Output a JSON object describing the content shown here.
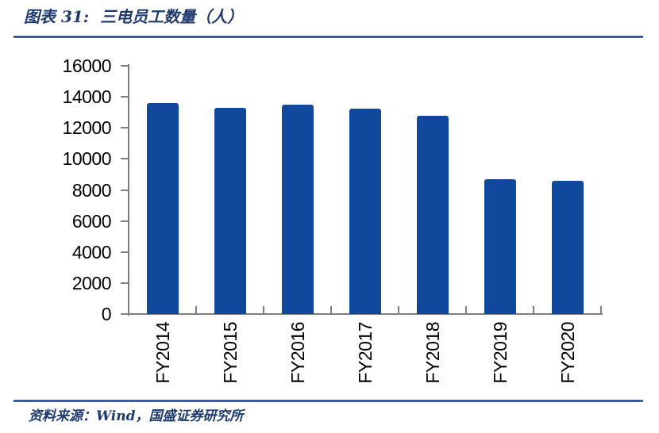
{
  "figure": {
    "label": "图表 31:",
    "caption": "三电员工数量（人）"
  },
  "footer": {
    "source": "资料来源：Wind，国盛证券研究所"
  },
  "colors": {
    "bar": "#10489C",
    "accent_rule": "#1E3F8F",
    "title_text": "#1E3A6E",
    "axis_line": "#7F7F7F",
    "tick_label": "#000000"
  },
  "chart_data": {
    "type": "bar",
    "title": "三电员工数量（人）",
    "categories": [
      "FY2014",
      "FY2015",
      "FY2016",
      "FY2017",
      "FY2018",
      "FY2019",
      "FY2020"
    ],
    "values": [
      13600,
      13300,
      13500,
      13250,
      12800,
      8700,
      8600
    ],
    "xlabel": "",
    "ylabel": "",
    "ylim": [
      0,
      16000
    ],
    "ytick_step": 2000,
    "ytick_labels": [
      "0",
      "2000",
      "4000",
      "6000",
      "8000",
      "10000",
      "12000",
      "14000",
      "16000"
    ],
    "grid": false,
    "legend_position": "none",
    "bar_color": "#10489C",
    "x_labels_rotated_degrees": 90
  }
}
